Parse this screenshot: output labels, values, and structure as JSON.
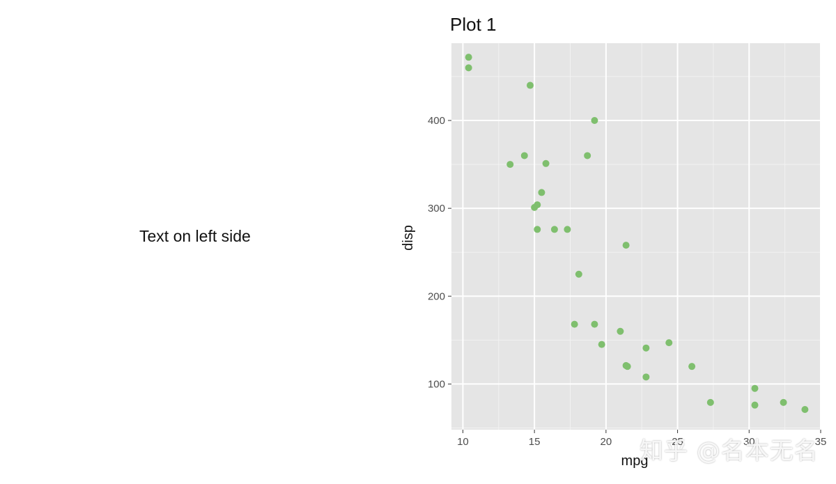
{
  "left_text": "Text on left side",
  "watermark": "知乎 @名本无名",
  "chart_data": {
    "type": "scatter",
    "title": "Plot 1",
    "xlabel": "mpg",
    "ylabel": "disp",
    "xlim": [
      9.2,
      35
    ],
    "ylim": [
      48,
      488
    ],
    "x_ticks": [
      10,
      15,
      20,
      25,
      30,
      35
    ],
    "y_ticks": [
      100,
      200,
      300,
      400
    ],
    "grid": true,
    "point_color": "#7FBF6E",
    "panel_color": "#E5E5E5",
    "points": [
      {
        "x": 10.4,
        "y": 472
      },
      {
        "x": 10.4,
        "y": 460
      },
      {
        "x": 14.7,
        "y": 440
      },
      {
        "x": 19.2,
        "y": 400
      },
      {
        "x": 14.3,
        "y": 360
      },
      {
        "x": 18.7,
        "y": 360
      },
      {
        "x": 13.3,
        "y": 350
      },
      {
        "x": 15.8,
        "y": 351
      },
      {
        "x": 15.5,
        "y": 318
      },
      {
        "x": 15.2,
        "y": 304
      },
      {
        "x": 15.0,
        "y": 301
      },
      {
        "x": 15.2,
        "y": 276
      },
      {
        "x": 16.4,
        "y": 276
      },
      {
        "x": 17.3,
        "y": 276
      },
      {
        "x": 21.4,
        "y": 258
      },
      {
        "x": 18.1,
        "y": 225
      },
      {
        "x": 17.8,
        "y": 168
      },
      {
        "x": 19.2,
        "y": 168
      },
      {
        "x": 21.0,
        "y": 160
      },
      {
        "x": 19.7,
        "y": 145
      },
      {
        "x": 22.8,
        "y": 141
      },
      {
        "x": 24.4,
        "y": 147
      },
      {
        "x": 21.4,
        "y": 121
      },
      {
        "x": 21.5,
        "y": 120
      },
      {
        "x": 26.0,
        "y": 120
      },
      {
        "x": 22.8,
        "y": 108
      },
      {
        "x": 27.3,
        "y": 79
      },
      {
        "x": 30.4,
        "y": 95
      },
      {
        "x": 30.4,
        "y": 76
      },
      {
        "x": 32.4,
        "y": 79
      },
      {
        "x": 33.9,
        "y": 71
      }
    ]
  }
}
